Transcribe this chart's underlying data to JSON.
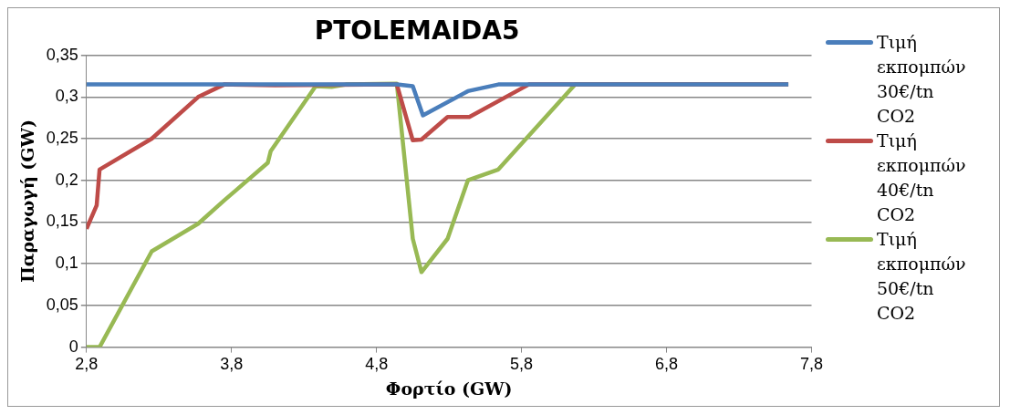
{
  "chart_data": {
    "type": "line",
    "title": "PTOLEMAIDA5",
    "xlabel": "Φορτίο (GW)",
    "ylabel": "Παραγωγή (GW)",
    "xlim": [
      2.8,
      7.8
    ],
    "xticks": [
      {
        "value": 2.8,
        "label": "2,8"
      },
      {
        "value": 3.8,
        "label": "3,8"
      },
      {
        "value": 4.8,
        "label": "4,8"
      },
      {
        "value": 5.8,
        "label": "5,8"
      },
      {
        "value": 6.8,
        "label": "6,8"
      },
      {
        "value": 7.8,
        "label": "7,8"
      }
    ],
    "ylim": [
      0,
      0.35
    ],
    "yticks": [
      0,
      {
        "value": 0.05,
        "label": "0,05"
      },
      {
        "value": 0.1,
        "label": "0,1"
      },
      {
        "value": 0.15,
        "label": "0,15"
      },
      {
        "value": 0.2,
        "label": "0,2"
      },
      {
        "value": 0.25,
        "label": "0,25"
      },
      {
        "value": 0.3,
        "label": "0,3"
      },
      {
        "value": 0.35,
        "label": "0,35"
      }
    ],
    "grid": "y",
    "legend": "right",
    "marker": "none",
    "line_style": "solid",
    "series": [
      {
        "name": "Τιμή εκπομπών 30€/tn CO2",
        "color": "#4a7ebb",
        "x": [
          2.8,
          4.94,
          5.05,
          5.12,
          5.43,
          5.64,
          7.64
        ],
        "values": [
          0.315,
          0.315,
          0.313,
          0.278,
          0.307,
          0.315,
          0.315
        ]
      },
      {
        "name": "Τιμή εκπομπών 40€/tn CO2",
        "color": "#be4b48",
        "x": [
          2.8,
          2.87,
          2.89,
          3.25,
          3.57,
          3.75,
          4.1,
          4.94,
          5.05,
          5.11,
          5.29,
          5.44,
          5.85,
          7.64
        ],
        "values": [
          0.142,
          0.17,
          0.213,
          0.25,
          0.3,
          0.315,
          0.314,
          0.315,
          0.248,
          0.249,
          0.276,
          0.276,
          0.315,
          0.315
        ]
      },
      {
        "name": "Τιμή εκπομπών 50€/tn CO2",
        "color": "#98b954",
        "x": [
          2.8,
          2.89,
          3.25,
          3.57,
          3.75,
          4.05,
          4.07,
          4.38,
          4.49,
          4.59,
          4.94,
          5.05,
          5.11,
          5.29,
          5.43,
          5.64,
          6.17,
          7.64
        ],
        "values": [
          0,
          0,
          0.115,
          0.148,
          0.176,
          0.221,
          0.235,
          0.313,
          0.312,
          0.315,
          0.316,
          0.13,
          0.09,
          0.13,
          0.2,
          0.213,
          0.315,
          0.315
        ]
      }
    ]
  }
}
